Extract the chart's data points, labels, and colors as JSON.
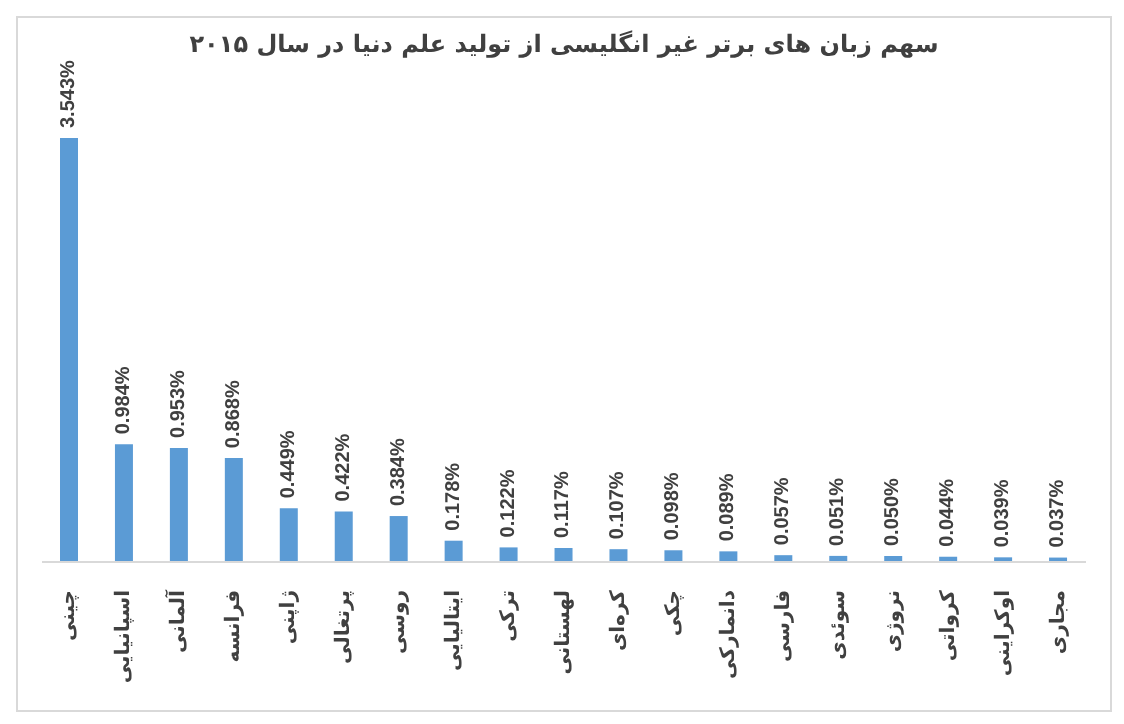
{
  "chart_data": {
    "type": "bar",
    "title": "سهم زبان های برتر غیر انگلیسی از تولید علم دنیا  در سال ۲۰۱۵",
    "categories": [
      "چینی",
      "اسپانیایی",
      "آلمانی",
      "فرانسه",
      "ژاپنی",
      "پرتغالی",
      "روسی",
      "ایتالیایی",
      "ترکی",
      "لهستانی",
      "کره‌ای",
      "چکی",
      "دانمارکی",
      "فارسی",
      "سوئدی",
      "نروژی",
      "کرواتی",
      "اوکراینی",
      "مجاری"
    ],
    "values": [
      3.543,
      0.984,
      0.953,
      0.868,
      0.449,
      0.422,
      0.384,
      0.178,
      0.122,
      0.117,
      0.107,
      0.098,
      0.089,
      0.057,
      0.051,
      0.05,
      0.044,
      0.039,
      0.037
    ],
    "value_labels": [
      "3.543%",
      "0.984%",
      "0.953%",
      "0.868%",
      "0.449%",
      "0.422%",
      "0.384%",
      "0.178%",
      "0.122%",
      "0.117%",
      "0.107%",
      "0.098%",
      "0.089%",
      "0.057%",
      "0.051%",
      "0.050%",
      "0.044%",
      "0.039%",
      "0.037%"
    ],
    "color": "#5b9bd5"
  }
}
